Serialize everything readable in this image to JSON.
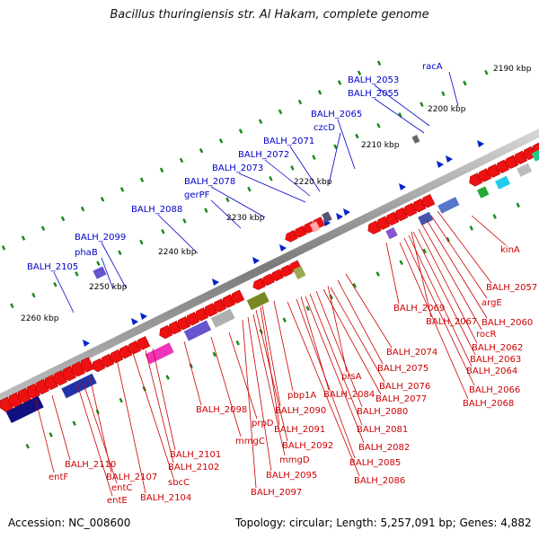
{
  "title": "Bacillus thuringiensis str. Al Hakam, complete genome",
  "footer": {
    "accession": "Accession: NC_008600",
    "topology": "Topology: circular; Length: 5,257,091 bp; Genes: 4,882"
  },
  "colors": {
    "forward_label": "#0000cc",
    "reverse_label": "#cc0000",
    "backbone": "#8a8a8a",
    "tick": "#1a8a1a"
  },
  "ruler": [
    "2190 kbp",
    "2200 kbp",
    "2210 kbp",
    "2220 kbp",
    "2230 kbp",
    "2240 kbp",
    "2250 kbp",
    "2260 kbp"
  ],
  "forward_genes": [
    "racA",
    "BALH_2053",
    "BALH_2055",
    "BALH_2065",
    "czcD",
    "BALH_2071",
    "BALH_2072",
    "BALH_2073",
    "BALH_2078",
    "gerPF",
    "BALH_2088",
    "BALH_2099",
    "phaB",
    "BALH_2105"
  ],
  "reverse_genes": [
    "kinA",
    "BALH_2057",
    "argE",
    "BALH_2060",
    "BALH_2067",
    "rocR",
    "BALH_2069",
    "BALH_2062",
    "BALH_2063",
    "BALH_2064",
    "BALH_2066",
    "BALH_2068",
    "BALH_2074",
    "BALH_2075",
    "prsA",
    "BALH_2076",
    "BALH_2077",
    "BALH_2084",
    "pbp1A",
    "BALH_2080",
    "BALH_2081",
    "BALH_2082",
    "BALH_2085",
    "BALH_2086",
    "BALH_2090",
    "BALH_2091",
    "BALH_2092",
    "mmgD",
    "BALH_2095",
    "BALH_2097",
    "BALH_2098",
    "prpD",
    "mmgC",
    "BALH_2101",
    "BALH_2102",
    "sbcC",
    "BALH_2104",
    "BALH_2107",
    "entC",
    "entE",
    "BALH_2110",
    "entF"
  ]
}
